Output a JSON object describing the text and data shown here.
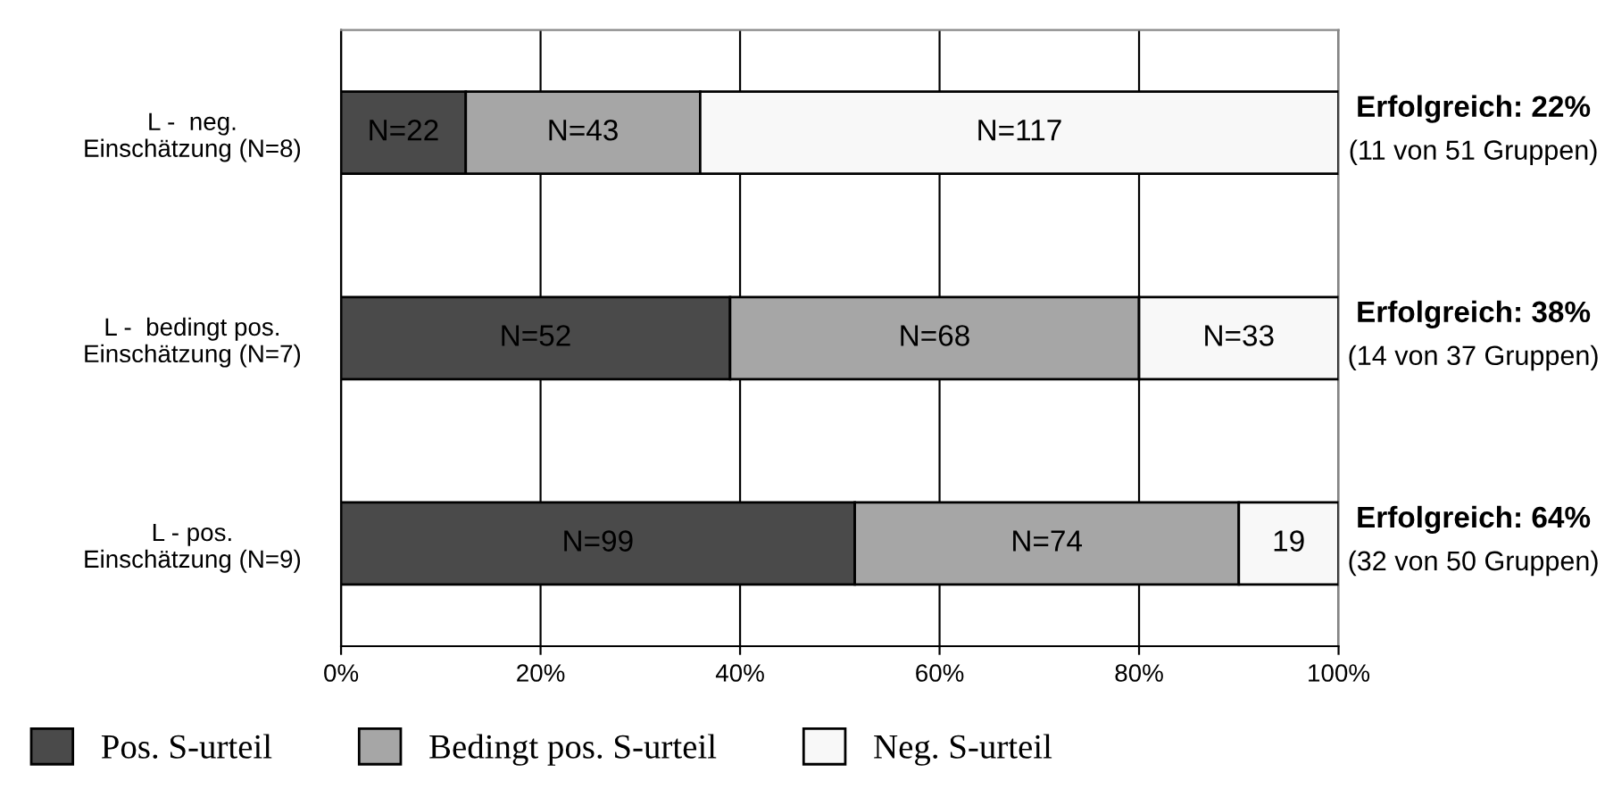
{
  "chart_data": {
    "type": "bar",
    "orientation": "horizontal",
    "stacked": true,
    "categories": [
      "L -  neg.\nEinschätzung (N=8)",
      "L -  bedingt pos.\nEinschätzung (N=7)",
      "L - pos.\nEinschätzung (N=9)"
    ],
    "series": [
      {
        "name": "Pos. S-urteil",
        "color": "#4a4a4a",
        "values": [
          12.5,
          39,
          51.5
        ]
      },
      {
        "name": "Bedingt pos. S-urteil",
        "color": "#a6a6a6",
        "values": [
          23.5,
          41,
          38.5
        ]
      },
      {
        "name": "Neg. S-urteil",
        "color": "#f8f8f8",
        "values": [
          64,
          20,
          10
        ]
      }
    ],
    "xlim": [
      0,
      100
    ],
    "xticks": [
      {
        "value": 0,
        "label": "0%"
      },
      {
        "value": 20,
        "label": "20%"
      },
      {
        "value": 40,
        "label": "40%"
      },
      {
        "value": 60,
        "label": "60%"
      },
      {
        "value": 80,
        "label": "80%"
      },
      {
        "value": 100,
        "label": "100%"
      }
    ],
    "grid": "x",
    "legend": "bottom",
    "annotations": [
      "N=22",
      "N=43",
      "N=117",
      "N=52",
      "N=68",
      "N=33",
      "N=99",
      "N=74",
      "19",
      "Erfolgreich: 22%",
      "(11 von 51 Gruppen)",
      "Erfolgreich: 38%",
      "(14 von 37 Gruppen)",
      "Erfolgreich: 64%",
      "(32 von 50 Gruppen)"
    ]
  }
}
